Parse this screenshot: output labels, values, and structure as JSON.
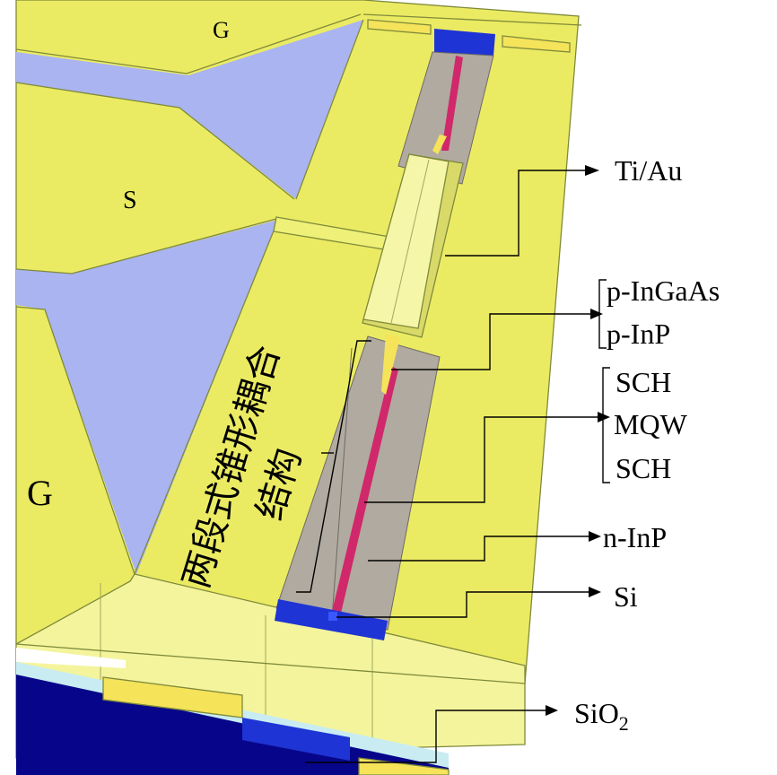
{
  "regions": {
    "g_top": "G",
    "s": "S",
    "g_left": "G"
  },
  "annotation_vertical": {
    "line1": "两段式锥形耦合",
    "line2": "结构"
  },
  "labels": {
    "ti_au": "Ti/Au",
    "p_ingaas": "p-InGaAs",
    "p_inp": "p-InP",
    "sch_top": "SCH",
    "mqw": "MQW",
    "sch_bottom": "SCH",
    "n_inp": "n-InP",
    "si": "Si",
    "sio2_base": "SiO",
    "sio2_sub": "2"
  },
  "colors": {
    "metal": "#ebeb63",
    "metal_light": "#f4f49c",
    "pad_lifted": "#f6f6a8",
    "gap": "#aab4f0",
    "mesa": "#b0aaa0",
    "mqw": "#d0286a",
    "si": "#1e34d4",
    "substrate": "#07068a",
    "oxide": "#c8ecf2",
    "gold": "#f5e35a"
  }
}
